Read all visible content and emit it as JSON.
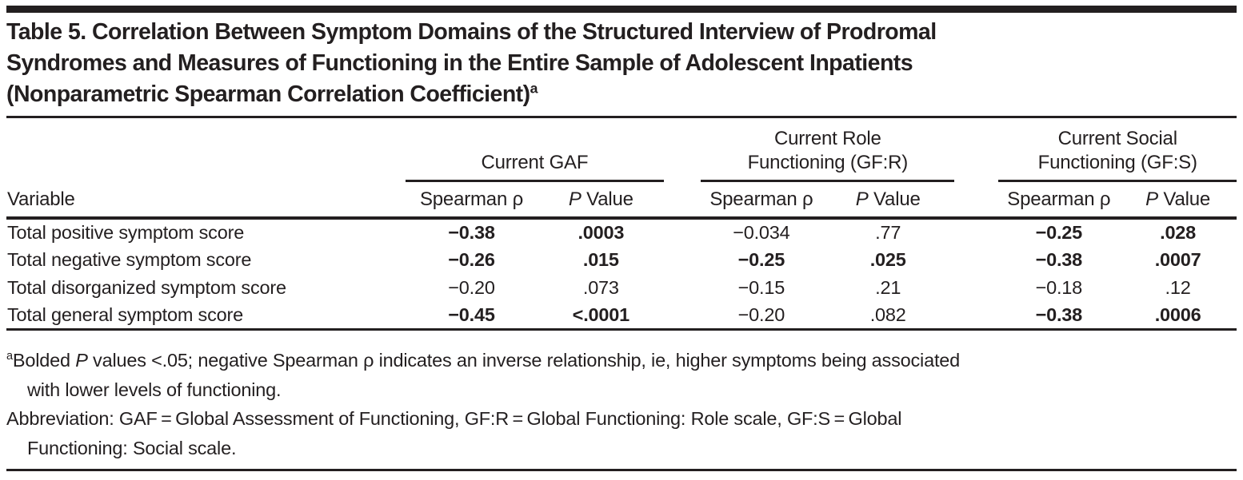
{
  "colors": {
    "ink": "#231f20",
    "paper": "#ffffff"
  },
  "table": {
    "title_lines": [
      [
        {
          "t": "Table 5. Correlation Between Symptom Domains of the Structured Interview of Prodromal"
        }
      ],
      [
        {
          "t": "Syndromes and Measures of Functioning in the Entire Sample of Adolescent Inpatients"
        }
      ],
      [
        {
          "t": "(Nonparametric Spearman Correlation Coefficient)"
        },
        {
          "t": "a",
          "sup": true
        }
      ]
    ],
    "variable_header": "Variable",
    "groups": [
      {
        "label": [
          {
            "t": "Current GAF"
          }
        ]
      },
      {
        "label": [
          {
            "t": "Current Role"
          },
          {
            "br": true
          },
          {
            "t": "Functioning (GF:R)"
          }
        ]
      },
      {
        "label": [
          {
            "t": "Current Social"
          },
          {
            "br": true
          },
          {
            "t": "Functioning (GF:S)"
          }
        ]
      }
    ],
    "subheaders": {
      "spearman": "Spearman ρ",
      "pvalue": [
        {
          "t": "P",
          "i": true
        },
        {
          "t": " Value"
        }
      ]
    },
    "rows": [
      {
        "label": "Total positive symptom score",
        "cells": [
          {
            "v": "−0.38",
            "bold": true
          },
          {
            "v": ".0003",
            "bold": true
          },
          {
            "v": "−0.034",
            "bold": false
          },
          {
            "v": ".77",
            "bold": false
          },
          {
            "v": "−0.25",
            "bold": true
          },
          {
            "v": ".028",
            "bold": true
          }
        ]
      },
      {
        "label": "Total negative symptom score",
        "cells": [
          {
            "v": "−0.26",
            "bold": true
          },
          {
            "v": ".015",
            "bold": true
          },
          {
            "v": "−0.25",
            "bold": true
          },
          {
            "v": ".025",
            "bold": true
          },
          {
            "v": "−0.38",
            "bold": true
          },
          {
            "v": ".0007",
            "bold": true
          }
        ]
      },
      {
        "label": "Total disorganized symptom score",
        "cells": [
          {
            "v": "−0.20",
            "bold": false
          },
          {
            "v": ".073",
            "bold": false
          },
          {
            "v": "−0.15",
            "bold": false
          },
          {
            "v": ".21",
            "bold": false
          },
          {
            "v": "−0.18",
            "bold": false
          },
          {
            "v": ".12",
            "bold": false
          }
        ]
      },
      {
        "label": "Total general symptom score",
        "cells": [
          {
            "v": "−0.45",
            "bold": true
          },
          {
            "v": "<.0001",
            "bold": true
          },
          {
            "v": "−0.20",
            "bold": false
          },
          {
            "v": ".082",
            "bold": false
          },
          {
            "v": "−0.38",
            "bold": true
          },
          {
            "v": ".0006",
            "bold": true
          }
        ]
      }
    ]
  },
  "footnotes": {
    "a": [
      {
        "t": "a",
        "sup": true
      },
      {
        "t": "Bolded "
      },
      {
        "t": "P",
        "i": true
      },
      {
        "t": " values <.05; negative Spearman ρ indicates an inverse relationship, ie, higher symptoms being associated"
      },
      {
        "br": true
      },
      {
        "t": "with lower levels of functioning."
      }
    ],
    "abbreviation": [
      {
        "t": "Abbreviation: GAF = Global Assessment of Functioning, GF:R = Global Functioning: Role scale, GF:S = Global"
      },
      {
        "br": true
      },
      {
        "t": "Functioning: Social scale."
      }
    ]
  }
}
